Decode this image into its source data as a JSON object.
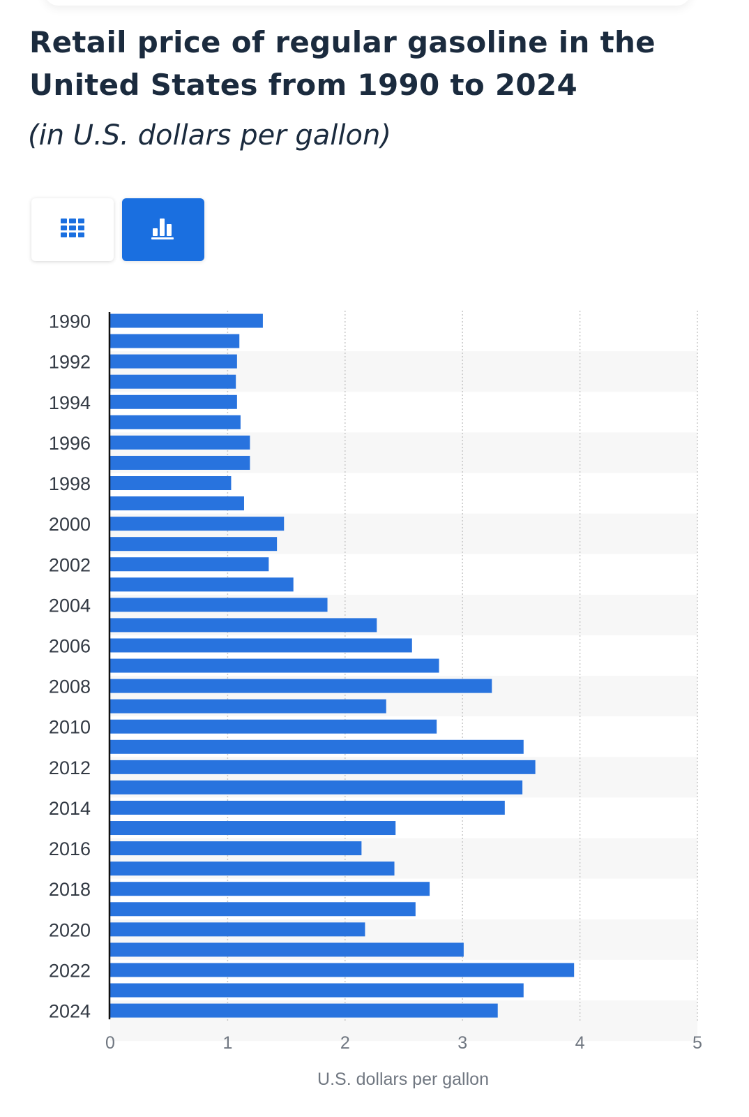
{
  "header": {
    "title": "Retail price of regular gasoline in the United States from 1990 to 2024",
    "subtitle": "(in U.S. dollars per gallon)"
  },
  "view_toggle": {
    "table_icon": "grid-table-icon",
    "chart_icon": "bar-chart-icon",
    "active": "chart",
    "active_color": "#1a6fe0"
  },
  "colors": {
    "bar": "#2873de",
    "axis": "#111111",
    "grid": "#c8c8c8",
    "band": "#f7f7f7"
  },
  "chart_data": {
    "type": "bar",
    "orientation": "horizontal",
    "categories": [
      "1990",
      "1991",
      "1992",
      "1993",
      "1994",
      "1995",
      "1996",
      "1997",
      "1998",
      "1999",
      "2000",
      "2001",
      "2002",
      "2003",
      "2004",
      "2005",
      "2006",
      "2007",
      "2008",
      "2009",
      "2010",
      "2011",
      "2012",
      "2013",
      "2014",
      "2015",
      "2016",
      "2017",
      "2018",
      "2019",
      "2020",
      "2021",
      "2022",
      "2023",
      "2024"
    ],
    "category_tick_labels": [
      "1990",
      "",
      "1992",
      "",
      "1994",
      "",
      "1996",
      "",
      "1998",
      "",
      "2000",
      "",
      "2002",
      "",
      "2004",
      "",
      "2006",
      "",
      "2008",
      "",
      "2010",
      "",
      "2012",
      "",
      "2014",
      "",
      "2016",
      "",
      "2018",
      "",
      "2020",
      "",
      "2022",
      "",
      "2024"
    ],
    "values": [
      1.3,
      1.1,
      1.08,
      1.07,
      1.08,
      1.11,
      1.19,
      1.19,
      1.03,
      1.14,
      1.48,
      1.42,
      1.35,
      1.56,
      1.85,
      2.27,
      2.57,
      2.8,
      3.25,
      2.35,
      2.78,
      3.52,
      3.62,
      3.51,
      3.36,
      2.43,
      2.14,
      2.42,
      2.72,
      2.6,
      2.17,
      3.01,
      3.95,
      3.52,
      3.3
    ],
    "xlabel": "U.S. dollars per gallon",
    "xlim": [
      0,
      5
    ],
    "xticks": [
      0,
      1,
      2,
      3,
      4,
      5
    ],
    "grid": true
  }
}
